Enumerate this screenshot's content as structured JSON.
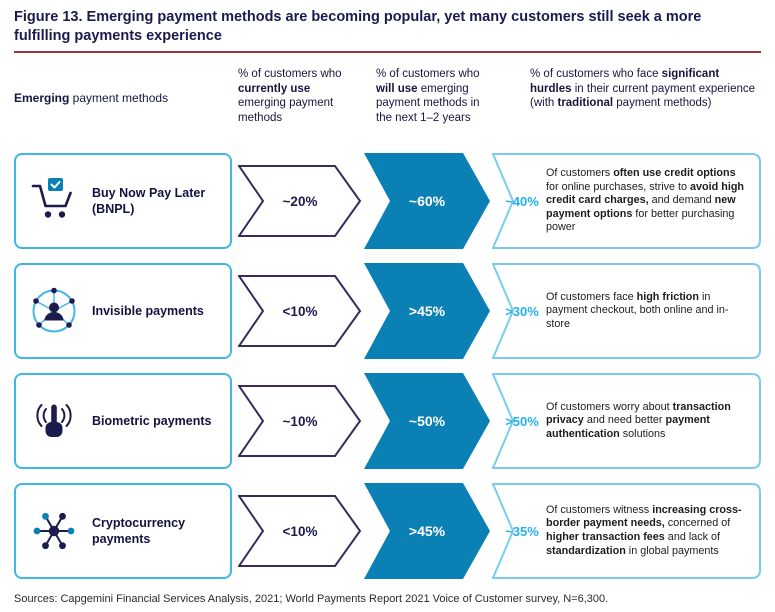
{
  "figure": {
    "title": "Figure 13. Emerging payment methods are becoming popular, yet many customers still seek a more fulfilling payments experience",
    "source": "Sources: Capgemini Financial Services Analysis, 2021; World Payments Report 2021 Voice of Customer survey, N=6,300."
  },
  "colors": {
    "navy": "#1b1b4d",
    "title_navy": "#1a1a4e",
    "rule_red": "#9c3a3a",
    "light_blue": "#3fb6e6",
    "panel_blue": "#7accee",
    "fill_blue": "#0b80b4",
    "cyan_text": "#25b2e8",
    "chevron_purple": "#3a2a5e",
    "body_text": "#1d1d1d"
  },
  "headers": {
    "col1": [
      {
        "t": "Emerging",
        "b": true
      },
      {
        "t": " payment methods",
        "b": false
      }
    ],
    "col2": [
      {
        "t": "% of customers who ",
        "b": false
      },
      {
        "t": "currently use",
        "b": true
      },
      {
        "t": " emerging payment methods",
        "b": false
      }
    ],
    "col3": [
      {
        "t": "% of customers who ",
        "b": false
      },
      {
        "t": "will use",
        "b": true
      },
      {
        "t": " emerging payment methods in the next 1–2 years",
        "b": false
      }
    ],
    "col4": [
      {
        "t": "% of customers who face ",
        "b": false
      },
      {
        "t": "significant hurdles",
        "b": true
      },
      {
        "t": " in their current payment experience (with ",
        "b": false
      },
      {
        "t": "traditional",
        "b": true
      },
      {
        "t": " payment methods)",
        "b": false
      }
    ]
  },
  "rows": [
    {
      "icon": "bnpl-cart-icon",
      "label": "Buy Now Pay Later (BNPL)",
      "current": "~20%",
      "future": "~60%",
      "hurdle_pct": "~40%",
      "hurdle_text": [
        {
          "t": "Of customers ",
          "b": false
        },
        {
          "t": "often use credit options",
          "b": true
        },
        {
          "t": " for online purchases, strive to ",
          "b": false
        },
        {
          "t": "avoid high credit card charges,",
          "b": true
        },
        {
          "t": " and demand ",
          "b": false
        },
        {
          "t": "new payment options",
          "b": true
        },
        {
          "t": " for better purchasing power",
          "b": false
        }
      ]
    },
    {
      "icon": "invisible-payments-network-icon",
      "label": "Invisible payments",
      "current": "<10%",
      "future": ">45%",
      "hurdle_pct": ">30%",
      "hurdle_text": [
        {
          "t": "Of customers face ",
          "b": false
        },
        {
          "t": "high friction",
          "b": true
        },
        {
          "t": " in payment checkout, both online and in-store",
          "b": false
        }
      ]
    },
    {
      "icon": "biometric-touch-icon",
      "label": "Biometric payments",
      "current": "~10%",
      "future": "~50%",
      "hurdle_pct": ">50%",
      "hurdle_text": [
        {
          "t": "Of customers worry about ",
          "b": false
        },
        {
          "t": "transaction privacy",
          "b": true
        },
        {
          "t": " and need better ",
          "b": false
        },
        {
          "t": "payment authentication",
          "b": true
        },
        {
          "t": " solutions",
          "b": false
        }
      ]
    },
    {
      "icon": "cryptocurrency-network-icon",
      "label": "Cryptocurrency payments",
      "current": "<10%",
      "future": ">45%",
      "hurdle_pct": "~35%",
      "hurdle_text": [
        {
          "t": "Of customers witness ",
          "b": false
        },
        {
          "t": "increasing cross-border payment needs,",
          "b": true
        },
        {
          "t": " concerned of ",
          "b": false
        },
        {
          "t": "higher transaction fees",
          "b": true
        },
        {
          "t": " and lack of ",
          "b": false
        },
        {
          "t": "standardization",
          "b": true
        },
        {
          "t": " in global payments",
          "b": false
        }
      ]
    }
  ],
  "chart_data": {
    "type": "table",
    "title": "Figure 13. Emerging payment methods are becoming popular, yet many customers still seek a more fulfilling payments experience",
    "categories": [
      "Buy Now Pay Later (BNPL)",
      "Invisible payments",
      "Biometric payments",
      "Cryptocurrency payments"
    ],
    "series": [
      {
        "name": "% of customers who currently use emerging payment methods",
        "values": [
          "~20%",
          "<10%",
          "~10%",
          "<10%"
        ]
      },
      {
        "name": "% of customers who will use emerging payment methods in the next 1–2 years",
        "values": [
          "~60%",
          ">45%",
          "~50%",
          ">45%"
        ]
      },
      {
        "name": "% of customers who face significant hurdles in their current payment experience (with traditional payment methods)",
        "values": [
          "~40%",
          ">30%",
          ">50%",
          "~35%"
        ]
      }
    ],
    "source_note": "Sources: Capgemini Financial Services Analysis, 2021; World Payments Report 2021 Voice of Customer survey, N=6,300."
  }
}
